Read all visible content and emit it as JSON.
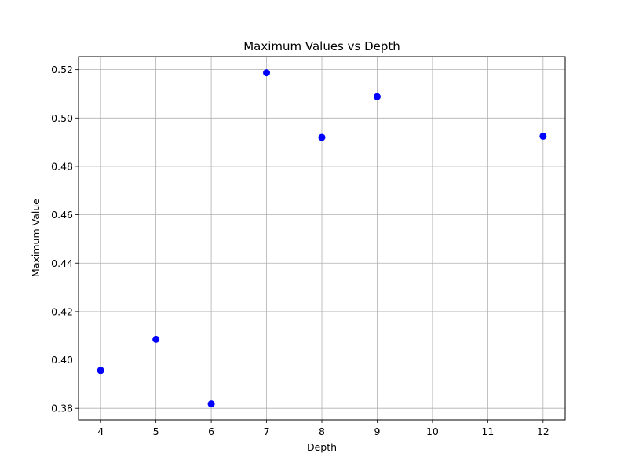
{
  "chart_data": {
    "type": "scatter",
    "title": "Maximum Values vs Depth",
    "xlabel": "Depth",
    "ylabel": "Maximum Value",
    "xlim": [
      3.6,
      12.4
    ],
    "ylim": [
      0.3752,
      0.5254
    ],
    "xticks": [
      4,
      5,
      6,
      7,
      8,
      9,
      10,
      11,
      12
    ],
    "yticks": [
      0.38,
      0.4,
      0.42,
      0.44,
      0.46,
      0.48,
      0.5,
      0.52
    ],
    "ytick_labels": [
      "0.38",
      "0.40",
      "0.42",
      "0.44",
      "0.46",
      "0.48",
      "0.50",
      "0.52"
    ],
    "grid": true,
    "color": "#0000ff",
    "series": [
      {
        "x": [
          4,
          5,
          6,
          7,
          8,
          9,
          12
        ],
        "y": [
          0.3957,
          0.4085,
          0.3818,
          0.5187,
          0.492,
          0.5088,
          0.4925
        ]
      }
    ]
  }
}
